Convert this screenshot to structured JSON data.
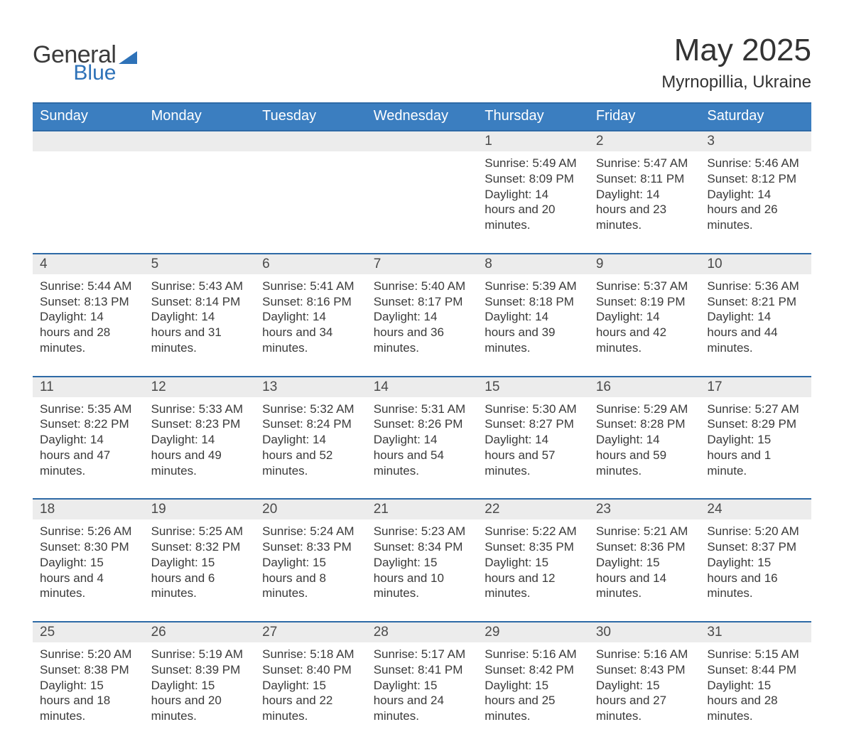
{
  "brand": {
    "word1": "General",
    "word2": "Blue"
  },
  "title": "May 2025",
  "location": "Myrnopillia, Ukraine",
  "colors": {
    "header_bg": "#3b7ec0",
    "header_border": "#2e6aa6",
    "daynum_bg": "#ececec",
    "text": "#3a3a3a",
    "brand_blue": "#2e72b8"
  },
  "days_of_week": [
    "Sunday",
    "Monday",
    "Tuesday",
    "Wednesday",
    "Thursday",
    "Friday",
    "Saturday"
  ],
  "weeks": [
    [
      {
        "n": "",
        "sunrise": "",
        "sunset": "",
        "daylight": ""
      },
      {
        "n": "",
        "sunrise": "",
        "sunset": "",
        "daylight": ""
      },
      {
        "n": "",
        "sunrise": "",
        "sunset": "",
        "daylight": ""
      },
      {
        "n": "",
        "sunrise": "",
        "sunset": "",
        "daylight": ""
      },
      {
        "n": "1",
        "sunrise": "Sunrise: 5:49 AM",
        "sunset": "Sunset: 8:09 PM",
        "daylight": "Daylight: 14 hours and 20 minutes."
      },
      {
        "n": "2",
        "sunrise": "Sunrise: 5:47 AM",
        "sunset": "Sunset: 8:11 PM",
        "daylight": "Daylight: 14 hours and 23 minutes."
      },
      {
        "n": "3",
        "sunrise": "Sunrise: 5:46 AM",
        "sunset": "Sunset: 8:12 PM",
        "daylight": "Daylight: 14 hours and 26 minutes."
      }
    ],
    [
      {
        "n": "4",
        "sunrise": "Sunrise: 5:44 AM",
        "sunset": "Sunset: 8:13 PM",
        "daylight": "Daylight: 14 hours and 28 minutes."
      },
      {
        "n": "5",
        "sunrise": "Sunrise: 5:43 AM",
        "sunset": "Sunset: 8:14 PM",
        "daylight": "Daylight: 14 hours and 31 minutes."
      },
      {
        "n": "6",
        "sunrise": "Sunrise: 5:41 AM",
        "sunset": "Sunset: 8:16 PM",
        "daylight": "Daylight: 14 hours and 34 minutes."
      },
      {
        "n": "7",
        "sunrise": "Sunrise: 5:40 AM",
        "sunset": "Sunset: 8:17 PM",
        "daylight": "Daylight: 14 hours and 36 minutes."
      },
      {
        "n": "8",
        "sunrise": "Sunrise: 5:39 AM",
        "sunset": "Sunset: 8:18 PM",
        "daylight": "Daylight: 14 hours and 39 minutes."
      },
      {
        "n": "9",
        "sunrise": "Sunrise: 5:37 AM",
        "sunset": "Sunset: 8:19 PM",
        "daylight": "Daylight: 14 hours and 42 minutes."
      },
      {
        "n": "10",
        "sunrise": "Sunrise: 5:36 AM",
        "sunset": "Sunset: 8:21 PM",
        "daylight": "Daylight: 14 hours and 44 minutes."
      }
    ],
    [
      {
        "n": "11",
        "sunrise": "Sunrise: 5:35 AM",
        "sunset": "Sunset: 8:22 PM",
        "daylight": "Daylight: 14 hours and 47 minutes."
      },
      {
        "n": "12",
        "sunrise": "Sunrise: 5:33 AM",
        "sunset": "Sunset: 8:23 PM",
        "daylight": "Daylight: 14 hours and 49 minutes."
      },
      {
        "n": "13",
        "sunrise": "Sunrise: 5:32 AM",
        "sunset": "Sunset: 8:24 PM",
        "daylight": "Daylight: 14 hours and 52 minutes."
      },
      {
        "n": "14",
        "sunrise": "Sunrise: 5:31 AM",
        "sunset": "Sunset: 8:26 PM",
        "daylight": "Daylight: 14 hours and 54 minutes."
      },
      {
        "n": "15",
        "sunrise": "Sunrise: 5:30 AM",
        "sunset": "Sunset: 8:27 PM",
        "daylight": "Daylight: 14 hours and 57 minutes."
      },
      {
        "n": "16",
        "sunrise": "Sunrise: 5:29 AM",
        "sunset": "Sunset: 8:28 PM",
        "daylight": "Daylight: 14 hours and 59 minutes."
      },
      {
        "n": "17",
        "sunrise": "Sunrise: 5:27 AM",
        "sunset": "Sunset: 8:29 PM",
        "daylight": "Daylight: 15 hours and 1 minute."
      }
    ],
    [
      {
        "n": "18",
        "sunrise": "Sunrise: 5:26 AM",
        "sunset": "Sunset: 8:30 PM",
        "daylight": "Daylight: 15 hours and 4 minutes."
      },
      {
        "n": "19",
        "sunrise": "Sunrise: 5:25 AM",
        "sunset": "Sunset: 8:32 PM",
        "daylight": "Daylight: 15 hours and 6 minutes."
      },
      {
        "n": "20",
        "sunrise": "Sunrise: 5:24 AM",
        "sunset": "Sunset: 8:33 PM",
        "daylight": "Daylight: 15 hours and 8 minutes."
      },
      {
        "n": "21",
        "sunrise": "Sunrise: 5:23 AM",
        "sunset": "Sunset: 8:34 PM",
        "daylight": "Daylight: 15 hours and 10 minutes."
      },
      {
        "n": "22",
        "sunrise": "Sunrise: 5:22 AM",
        "sunset": "Sunset: 8:35 PM",
        "daylight": "Daylight: 15 hours and 12 minutes."
      },
      {
        "n": "23",
        "sunrise": "Sunrise: 5:21 AM",
        "sunset": "Sunset: 8:36 PM",
        "daylight": "Daylight: 15 hours and 14 minutes."
      },
      {
        "n": "24",
        "sunrise": "Sunrise: 5:20 AM",
        "sunset": "Sunset: 8:37 PM",
        "daylight": "Daylight: 15 hours and 16 minutes."
      }
    ],
    [
      {
        "n": "25",
        "sunrise": "Sunrise: 5:20 AM",
        "sunset": "Sunset: 8:38 PM",
        "daylight": "Daylight: 15 hours and 18 minutes."
      },
      {
        "n": "26",
        "sunrise": "Sunrise: 5:19 AM",
        "sunset": "Sunset: 8:39 PM",
        "daylight": "Daylight: 15 hours and 20 minutes."
      },
      {
        "n": "27",
        "sunrise": "Sunrise: 5:18 AM",
        "sunset": "Sunset: 8:40 PM",
        "daylight": "Daylight: 15 hours and 22 minutes."
      },
      {
        "n": "28",
        "sunrise": "Sunrise: 5:17 AM",
        "sunset": "Sunset: 8:41 PM",
        "daylight": "Daylight: 15 hours and 24 minutes."
      },
      {
        "n": "29",
        "sunrise": "Sunrise: 5:16 AM",
        "sunset": "Sunset: 8:42 PM",
        "daylight": "Daylight: 15 hours and 25 minutes."
      },
      {
        "n": "30",
        "sunrise": "Sunrise: 5:16 AM",
        "sunset": "Sunset: 8:43 PM",
        "daylight": "Daylight: 15 hours and 27 minutes."
      },
      {
        "n": "31",
        "sunrise": "Sunrise: 5:15 AM",
        "sunset": "Sunset: 8:44 PM",
        "daylight": "Daylight: 15 hours and 28 minutes."
      }
    ]
  ]
}
